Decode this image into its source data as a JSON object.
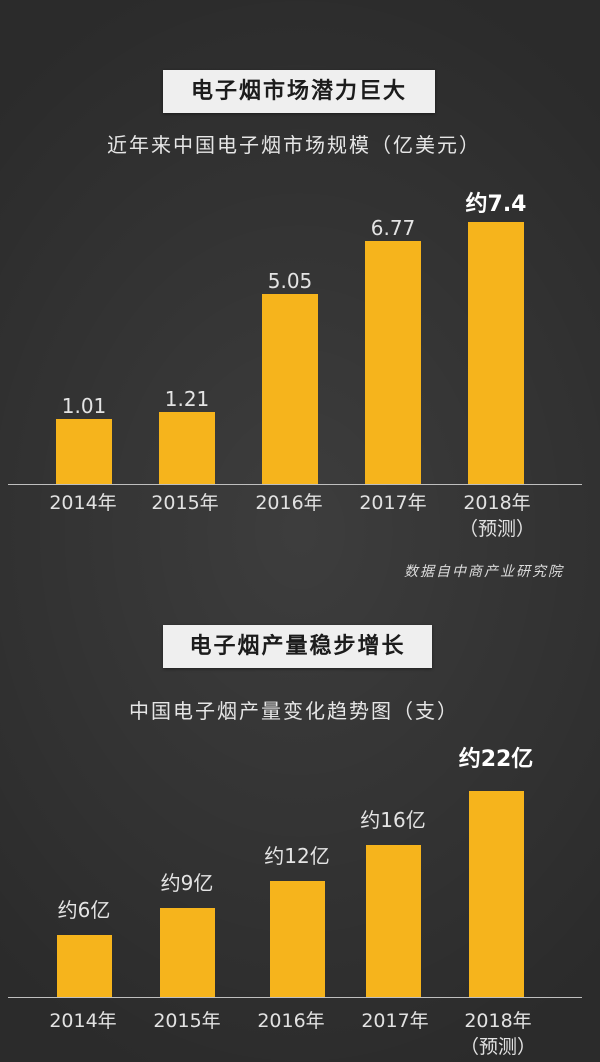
{
  "colors": {
    "background": "#333333",
    "banner": "#efefef",
    "bar": "#f6b41c"
  },
  "chart_data": [
    {
      "type": "bar",
      "title": "电子烟市场潜力巨大",
      "subtitle": "近年来中国电子烟市场规模（亿美元）",
      "categories": [
        "2014年",
        "2015年",
        "2016年",
        "2017年",
        "2018年\n（预测）"
      ],
      "values": [
        1.01,
        1.21,
        5.05,
        6.77,
        7.4
      ],
      "data_labels": [
        "1.01",
        "1.21",
        "5.05",
        "6.77",
        "约7.4"
      ],
      "grid": false,
      "source": "数据自中商产业研究院"
    },
    {
      "type": "bar",
      "title": "电子烟产量稳步增长",
      "subtitle": "中国电子烟产量变化趋势图（支）",
      "categories": [
        "2014年",
        "2015年",
        "2016年",
        "2017年",
        "2018年\n（预测）"
      ],
      "values": [
        600000000,
        900000000,
        1200000000,
        1600000000,
        2200000000
      ],
      "data_labels": [
        "约6亿",
        "约9亿",
        "约12亿",
        "约16亿",
        "约22亿"
      ],
      "grid": false
    }
  ]
}
